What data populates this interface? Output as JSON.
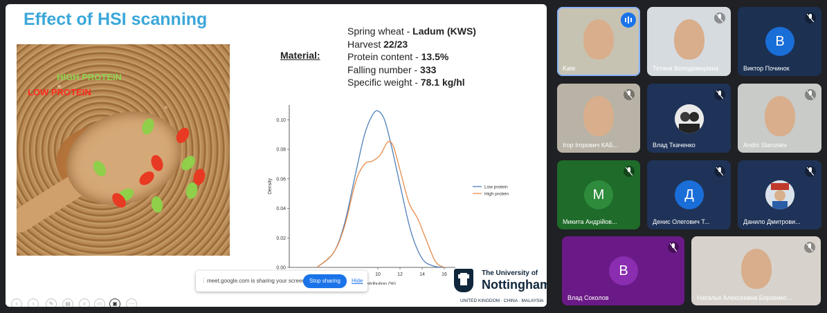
{
  "slide": {
    "title": "Effect of HSI scanning",
    "overlay_high": "HIGH PROTEIN",
    "overlay_low": "LOW PROTEIN",
    "material_label": "Material:",
    "material_lines": [
      {
        "text": "Spring wheat - ",
        "bold": "Ladum (KWS)"
      },
      {
        "text": "Harvest ",
        "bold": "22/23"
      },
      {
        "text": "Protein content - ",
        "bold": "13.5%"
      },
      {
        "text": "Falling number - ",
        "bold": "333"
      },
      {
        "text": "Specific weight - ",
        "bold": "78.1 kg/hl"
      }
    ]
  },
  "chart_data": {
    "type": "line",
    "xlabel": "Distribution (%)",
    "ylabel": "Density",
    "xlim": [
      2,
      17
    ],
    "ylim": [
      0,
      0.11
    ],
    "y_ticks": [
      "0.00",
      "0.02",
      "0.04",
      "0.06",
      "0.08",
      "0.10"
    ],
    "x_ticks": [
      "10",
      "12",
      "14",
      "16"
    ],
    "grid": false,
    "legend_position": "right",
    "series": [
      {
        "name": "Low protein",
        "color": "#4f7fb8",
        "x": [
          4.5,
          6,
          7,
          8,
          8.8,
          9.5,
          10,
          10.6,
          11.2,
          12,
          13,
          14,
          15,
          16
        ],
        "y": [
          0.0,
          0.01,
          0.03,
          0.064,
          0.09,
          0.103,
          0.106,
          0.1,
          0.083,
          0.056,
          0.024,
          0.006,
          0.001,
          0.0
        ]
      },
      {
        "name": "High protein",
        "color": "#e58b4a",
        "x": [
          4.5,
          6,
          7,
          8,
          8.8,
          9.5,
          10.2,
          10.9,
          11.4,
          12,
          12.8,
          13.6,
          14.3,
          15.2,
          16
        ],
        "y": [
          0.0,
          0.01,
          0.028,
          0.058,
          0.07,
          0.072,
          0.076,
          0.085,
          0.082,
          0.066,
          0.044,
          0.033,
          0.02,
          0.004,
          0.0
        ]
      }
    ]
  },
  "share_bar": {
    "message": "meet.google.com is sharing your screen.",
    "stop_label": "Stop sharing",
    "hide_label": "Hide"
  },
  "university": {
    "line1": "The University of",
    "line2": "Nottingham",
    "sub": "UNITED KINGDOM · CHINA · MALAYSIA"
  },
  "participants": [
    {
      "name": "Kate",
      "type": "video",
      "bg": "#c7c3b3"
    },
    {
      "name": "Тетяна Володимирівна",
      "type": "video",
      "bg": "#d6dbe0"
    },
    {
      "name": "Виктор Починок",
      "type": "avatar",
      "initial": "В",
      "bg": "#1c3152",
      "avatar_color": "#1a6ed8"
    },
    {
      "name": "Ігор Ігорович КАБ...",
      "type": "video",
      "bg": "#b8b3a6"
    },
    {
      "name": "Влад Ткаченко",
      "type": "photo",
      "bg": "#1f3358"
    },
    {
      "name": "Andrii Starusiev",
      "type": "video",
      "bg": "#c8cbc8"
    },
    {
      "name": "Микита Андрійов...",
      "type": "avatar",
      "initial": "М",
      "bg": "#1e6b2a",
      "avatar_color": "#2e8b3c"
    },
    {
      "name": "Денис Олегович Т...",
      "type": "avatar",
      "initial": "Д",
      "bg": "#1f3358",
      "avatar_color": "#1a6ed8"
    },
    {
      "name": "Данило Дмитрови...",
      "type": "photo",
      "bg": "#1f3358"
    },
    {
      "name": "Влад Соколов",
      "type": "avatar",
      "initial": "В",
      "bg": "#6a1a86",
      "avatar_color": "#8a2db0"
    },
    {
      "name": "Наталья Алексеевна Боровико...",
      "type": "video",
      "bg": "#d7d3cc"
    }
  ]
}
